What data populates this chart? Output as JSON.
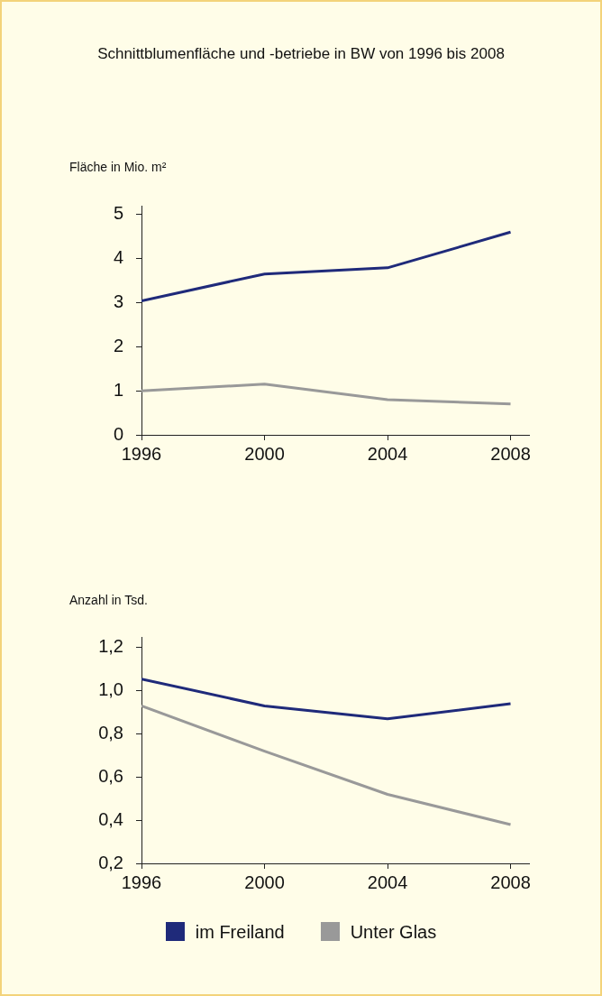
{
  "chart_data": [
    {
      "type": "line",
      "title": "Schnittblumenfläche und -betriebe in BW von 1996 bis 2008",
      "ylabel": "Fläche in Mio. m²",
      "x": [
        1996,
        2000,
        2004,
        2008
      ],
      "xlim": [
        1996,
        2008.6
      ],
      "xticks": [
        1996,
        2000,
        2004,
        2008
      ],
      "ylim": [
        0,
        5.2
      ],
      "yticks": [
        0,
        1,
        2,
        3,
        4,
        5
      ],
      "grid": false,
      "legend": false,
      "marker": "none",
      "line_style": "solid",
      "series": [
        {
          "color": "#1f2a7a",
          "values": [
            3.04,
            3.65,
            3.79,
            4.6
          ]
        },
        {
          "color": "#999999",
          "values": [
            1.0,
            1.15,
            0.8,
            0.7
          ]
        }
      ]
    },
    {
      "type": "line",
      "ylabel": "Anzahl in Tsd.",
      "x": [
        1996,
        2000,
        2004,
        2008
      ],
      "xlim": [
        1996,
        2008.6
      ],
      "xticks": [
        1996,
        2000,
        2004,
        2008
      ],
      "ylim": [
        0.2,
        1.25
      ],
      "yticks": [
        {
          "value": 0.2,
          "label": "0,2"
        },
        {
          "value": 0.4,
          "label": "0,4"
        },
        {
          "value": 0.6,
          "label": "0,6"
        },
        {
          "value": 0.8,
          "label": "0,8"
        },
        {
          "value": 1.0,
          "label": "1,0"
        },
        {
          "value": 1.2,
          "label": "1,2"
        }
      ],
      "grid": false,
      "legend": "bottom",
      "marker": "none",
      "line_style": "solid",
      "series": [
        {
          "name": "im Freiland",
          "color": "#1f2a7a",
          "values": [
            1.055,
            0.93,
            0.87,
            0.94
          ]
        },
        {
          "name": "Unter Glas",
          "color": "#999999",
          "values": [
            0.93,
            0.72,
            0.52,
            0.38
          ]
        }
      ]
    }
  ]
}
